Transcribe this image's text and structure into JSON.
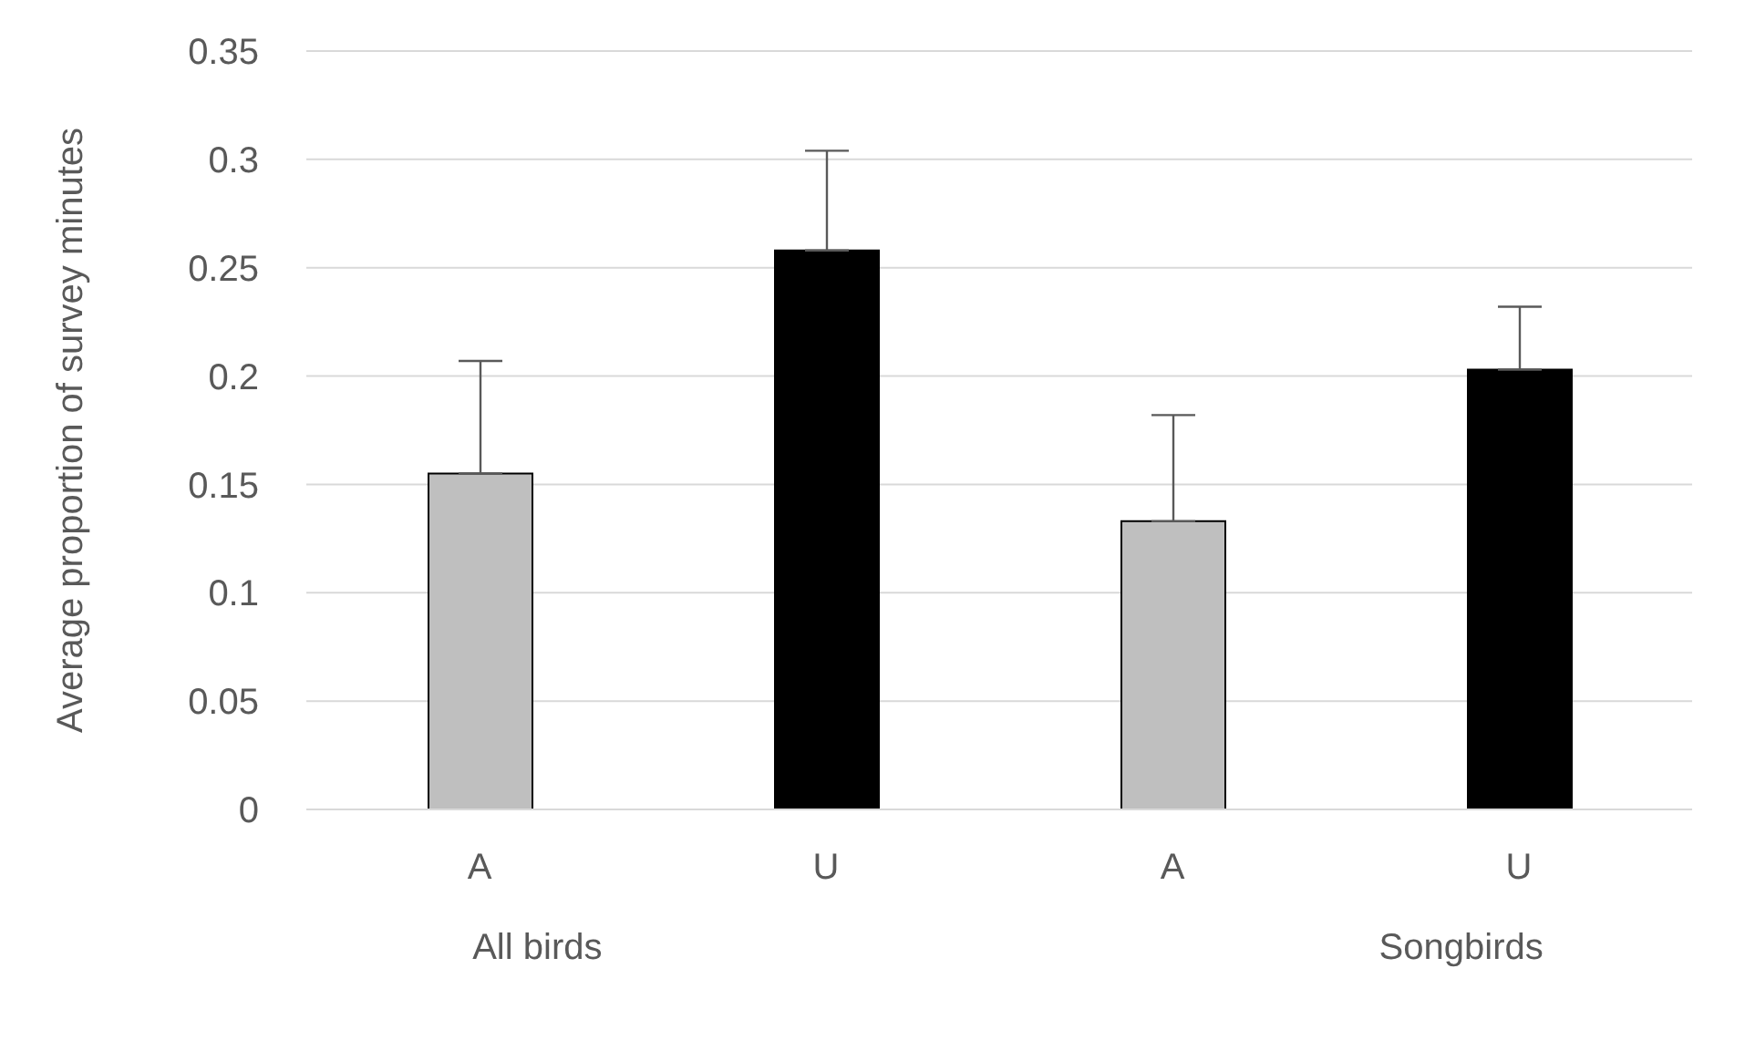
{
  "chart_data": {
    "type": "bar",
    "categories": [
      "A",
      "U",
      "A",
      "U"
    ],
    "values": [
      0.155,
      0.258,
      0.133,
      0.203
    ],
    "errors": [
      [
        0.155,
        0.207
      ],
      [
        0.258,
        0.304
      ],
      [
        0.133,
        0.182
      ],
      [
        0.203,
        0.232
      ]
    ],
    "colors": [
      "#bfbfbf",
      "#000000",
      "#bfbfbf",
      "#000000"
    ],
    "ylabel": "Average proportion of survey minutes",
    "ylim": [
      0,
      0.35
    ],
    "yticks": [
      0,
      0.05,
      0.1,
      0.15,
      0.2,
      0.25,
      0.3,
      0.35
    ],
    "grid": "y",
    "annotations": [
      "All birds",
      "Songbirds"
    ]
  }
}
